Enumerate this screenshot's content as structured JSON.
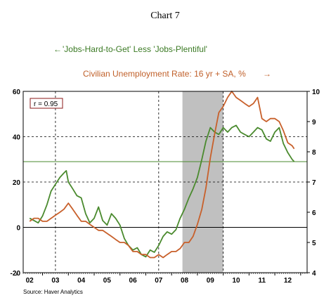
{
  "chart_data": {
    "type": "line",
    "title": "Chart 7",
    "source": "Source: Haver Analytics",
    "annotation": "r = 0.95",
    "x_labels": [
      "02",
      "03",
      "04",
      "05",
      "06",
      "07",
      "08",
      "09",
      "10",
      "11",
      "12"
    ],
    "left_axis": {
      "ylim": [
        -20,
        60
      ],
      "ticks": [
        "-20",
        "0",
        "20",
        "40",
        "60"
      ],
      "tick_values": [
        -20,
        0,
        20,
        40,
        60
      ]
    },
    "right_axis": {
      "ylim": [
        4,
        10
      ],
      "ticks": [
        "4",
        "5",
        "6",
        "7",
        "8",
        "9",
        "10"
      ],
      "tick_values": [
        4,
        5,
        6,
        7,
        8,
        9,
        10
      ]
    },
    "recession_shading": {
      "start": 2007.92,
      "end": 2009.5
    },
    "reference_line_left": 29,
    "grid": {
      "vertical_dashed_at": [
        2003,
        2007,
        2009.5
      ],
      "horizontal_dashed_at_left": [
        40,
        20
      ]
    },
    "series": [
      {
        "name": "'Jobs-Hard-to-Get' Less 'Jobs-Plentiful'",
        "legend_arrow": "←",
        "axis": "left",
        "color": "#4a8a2e",
        "points": [
          [
            2002.0,
            4
          ],
          [
            2002.17,
            3
          ],
          [
            2002.33,
            2
          ],
          [
            2002.5,
            5
          ],
          [
            2002.67,
            10
          ],
          [
            2002.83,
            16
          ],
          [
            2003.0,
            19
          ],
          [
            2003.17,
            22
          ],
          [
            2003.33,
            24
          ],
          [
            2003.42,
            25
          ],
          [
            2003.5,
            20
          ],
          [
            2003.67,
            17
          ],
          [
            2003.83,
            14
          ],
          [
            2004.0,
            13
          ],
          [
            2004.17,
            6
          ],
          [
            2004.33,
            2
          ],
          [
            2004.5,
            4
          ],
          [
            2004.67,
            9
          ],
          [
            2004.83,
            3
          ],
          [
            2005.0,
            1
          ],
          [
            2005.17,
            6
          ],
          [
            2005.33,
            4
          ],
          [
            2005.5,
            1
          ],
          [
            2005.67,
            -5
          ],
          [
            2005.83,
            -8
          ],
          [
            2006.0,
            -10
          ],
          [
            2006.17,
            -9
          ],
          [
            2006.33,
            -12
          ],
          [
            2006.5,
            -13
          ],
          [
            2006.67,
            -10
          ],
          [
            2006.83,
            -11
          ],
          [
            2007.0,
            -8
          ],
          [
            2007.17,
            -4
          ],
          [
            2007.33,
            -2
          ],
          [
            2007.5,
            -3
          ],
          [
            2007.67,
            -1
          ],
          [
            2007.83,
            4
          ],
          [
            2008.0,
            8
          ],
          [
            2008.17,
            13
          ],
          [
            2008.33,
            17
          ],
          [
            2008.5,
            22
          ],
          [
            2008.67,
            30
          ],
          [
            2008.83,
            38
          ],
          [
            2009.0,
            44
          ],
          [
            2009.17,
            42
          ],
          [
            2009.33,
            41
          ],
          [
            2009.5,
            44
          ],
          [
            2009.67,
            42
          ],
          [
            2009.83,
            44
          ],
          [
            2010.0,
            45
          ],
          [
            2010.17,
            42
          ],
          [
            2010.33,
            41
          ],
          [
            2010.5,
            40
          ],
          [
            2010.67,
            42
          ],
          [
            2010.83,
            44
          ],
          [
            2011.0,
            43
          ],
          [
            2011.17,
            39
          ],
          [
            2011.33,
            38
          ],
          [
            2011.5,
            42
          ],
          [
            2011.67,
            44
          ],
          [
            2011.83,
            37
          ],
          [
            2012.0,
            33
          ],
          [
            2012.17,
            30
          ],
          [
            2012.25,
            29
          ]
        ]
      },
      {
        "name": "Civilian Unemployment Rate: 16 yr + SA, %",
        "legend_arrow": "→",
        "axis": "right",
        "color": "#c8602b",
        "points": [
          [
            2002.0,
            5.7
          ],
          [
            2002.17,
            5.8
          ],
          [
            2002.33,
            5.8
          ],
          [
            2002.5,
            5.7
          ],
          [
            2002.67,
            5.7
          ],
          [
            2002.83,
            5.8
          ],
          [
            2003.0,
            5.9
          ],
          [
            2003.17,
            6.0
          ],
          [
            2003.33,
            6.1
          ],
          [
            2003.5,
            6.3
          ],
          [
            2003.67,
            6.1
          ],
          [
            2003.83,
            5.9
          ],
          [
            2004.0,
            5.7
          ],
          [
            2004.17,
            5.7
          ],
          [
            2004.33,
            5.6
          ],
          [
            2004.5,
            5.5
          ],
          [
            2004.67,
            5.4
          ],
          [
            2004.83,
            5.4
          ],
          [
            2005.0,
            5.3
          ],
          [
            2005.17,
            5.2
          ],
          [
            2005.33,
            5.1
          ],
          [
            2005.5,
            5.0
          ],
          [
            2005.67,
            5.0
          ],
          [
            2005.83,
            4.9
          ],
          [
            2006.0,
            4.7
          ],
          [
            2006.17,
            4.7
          ],
          [
            2006.33,
            4.6
          ],
          [
            2006.5,
            4.6
          ],
          [
            2006.67,
            4.5
          ],
          [
            2006.83,
            4.5
          ],
          [
            2007.0,
            4.6
          ],
          [
            2007.17,
            4.5
          ],
          [
            2007.33,
            4.6
          ],
          [
            2007.5,
            4.7
          ],
          [
            2007.67,
            4.7
          ],
          [
            2007.83,
            4.8
          ],
          [
            2008.0,
            5.0
          ],
          [
            2008.17,
            5.0
          ],
          [
            2008.33,
            5.2
          ],
          [
            2008.5,
            5.6
          ],
          [
            2008.67,
            6.1
          ],
          [
            2008.83,
            6.8
          ],
          [
            2009.0,
            7.8
          ],
          [
            2009.17,
            8.6
          ],
          [
            2009.33,
            9.3
          ],
          [
            2009.5,
            9.5
          ],
          [
            2009.67,
            9.8
          ],
          [
            2009.83,
            10.0
          ],
          [
            2010.0,
            9.8
          ],
          [
            2010.17,
            9.7
          ],
          [
            2010.33,
            9.6
          ],
          [
            2010.5,
            9.5
          ],
          [
            2010.67,
            9.6
          ],
          [
            2010.83,
            9.8
          ],
          [
            2011.0,
            9.1
          ],
          [
            2011.17,
            9.0
          ],
          [
            2011.33,
            9.1
          ],
          [
            2011.5,
            9.1
          ],
          [
            2011.67,
            9.0
          ],
          [
            2011.83,
            8.7
          ],
          [
            2012.0,
            8.3
          ],
          [
            2012.17,
            8.2
          ],
          [
            2012.25,
            8.1
          ]
        ]
      }
    ]
  }
}
